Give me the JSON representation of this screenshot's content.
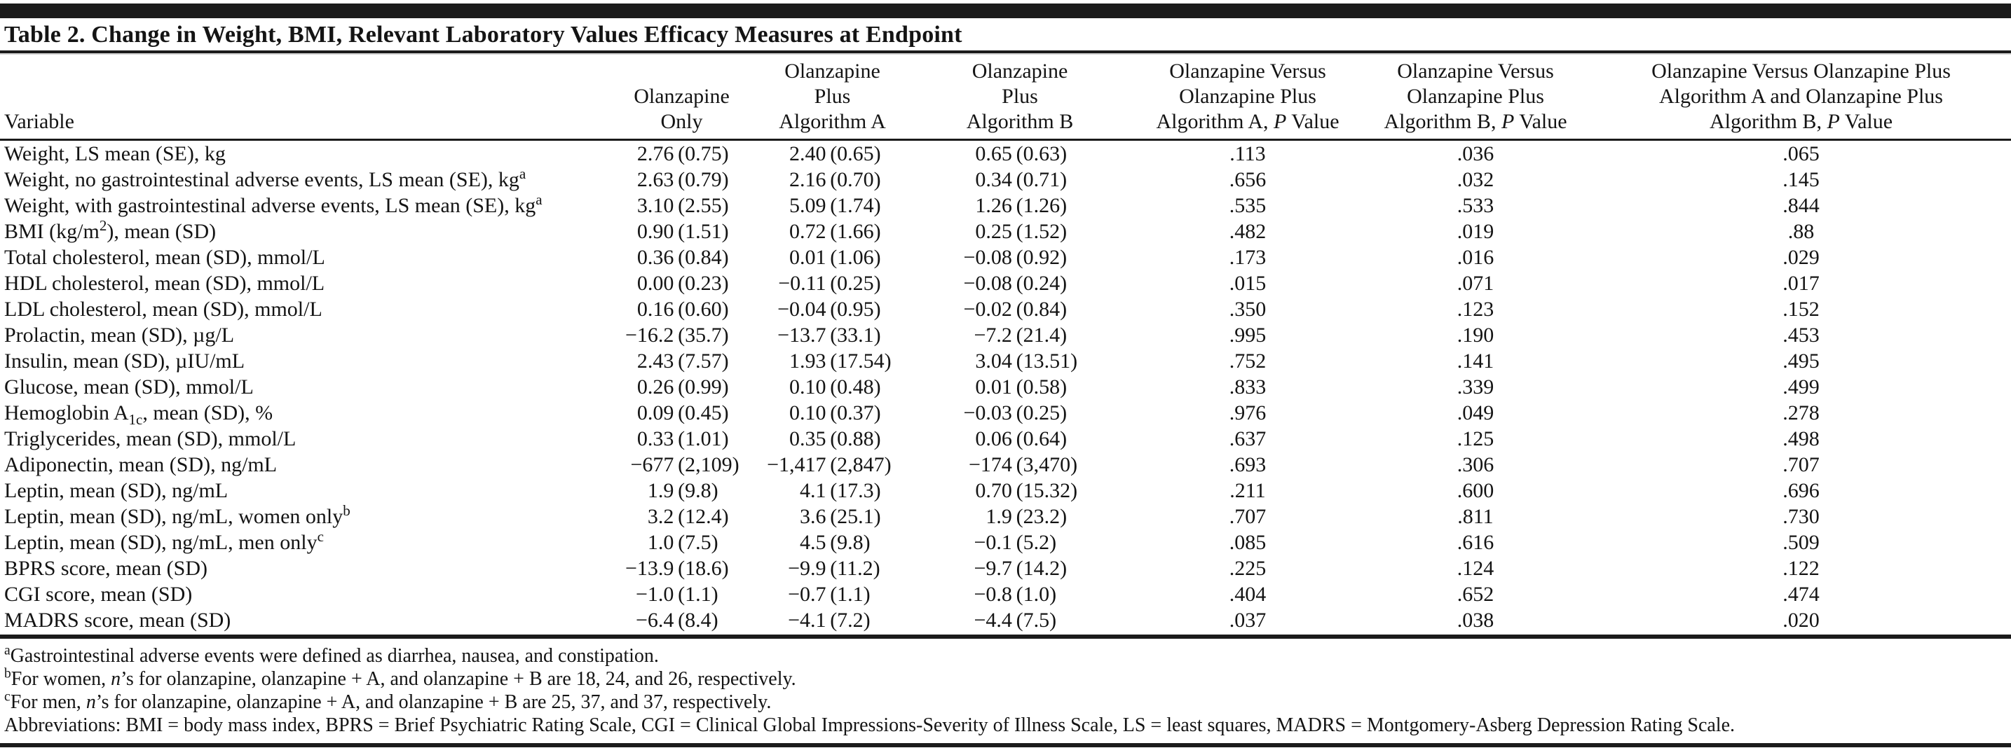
{
  "title": "Table 2. Change in Weight, BMI, Relevant Laboratory Values Efficacy Measures at Endpoint",
  "table": {
    "columns": [
      {
        "id": "variable",
        "label_lines": [
          "Variable"
        ]
      },
      {
        "id": "olz_only",
        "label_lines": [
          "Olanzapine",
          "Only"
        ]
      },
      {
        "id": "olz_a",
        "label_lines": [
          "Olanzapine",
          "Plus",
          "Algorithm A"
        ]
      },
      {
        "id": "olz_b",
        "label_lines": [
          "Olanzapine",
          "Plus",
          "Algorithm B"
        ]
      },
      {
        "id": "p_a",
        "label_lines": [
          "Olanzapine Versus",
          "Olanzapine Plus",
          "Algorithm A, *{P} Value"
        ]
      },
      {
        "id": "p_b",
        "label_lines": [
          "Olanzapine Versus",
          "Olanzapine Plus",
          "Algorithm B, *{P} Value"
        ]
      },
      {
        "id": "p_ab",
        "label_lines": [
          "Olanzapine Versus Olanzapine Plus",
          "Algorithm A and Olanzapine Plus",
          "Algorithm B, *{P} Value"
        ]
      }
    ],
    "rows": [
      {
        "variable": "Weight, LS mean (SE), kg",
        "olz_only": "2.76 (0.75)",
        "olz_a": "2.40 (0.65)",
        "olz_b": "0.65 (0.63)",
        "p_a": ".113",
        "p_b": ".036",
        "p_ab": ".065"
      },
      {
        "variable": "Weight, no gastrointestinal adverse events, LS mean (SE), kg^{a}",
        "olz_only": "2.63 (0.79)",
        "olz_a": "2.16 (0.70)",
        "olz_b": "0.34 (0.71)",
        "p_a": ".656",
        "p_b": ".032",
        "p_ab": ".145"
      },
      {
        "variable": "Weight, with gastrointestinal adverse events, LS mean (SE), kg^{a}",
        "olz_only": "3.10 (2.55)",
        "olz_a": "5.09 (1.74)",
        "olz_b": "1.26 (1.26)",
        "p_a": ".535",
        "p_b": ".533",
        "p_ab": ".844"
      },
      {
        "variable": "BMI (kg/m^{2}), mean (SD)",
        "olz_only": "0.90 (1.51)",
        "olz_a": "0.72 (1.66)",
        "olz_b": "0.25 (1.52)",
        "p_a": ".482",
        "p_b": ".019",
        "p_ab": ".88"
      },
      {
        "variable": "Total cholesterol, mean (SD), mmol/L",
        "olz_only": "0.36 (0.84)",
        "olz_a": "0.01 (1.06)",
        "olz_b": "−0.08 (0.92)",
        "p_a": ".173",
        "p_b": ".016",
        "p_ab": ".029"
      },
      {
        "variable": "HDL cholesterol, mean (SD), mmol/L",
        "olz_only": "0.00 (0.23)",
        "olz_a": "−0.11 (0.25)",
        "olz_b": "−0.08 (0.24)",
        "p_a": ".015",
        "p_b": ".071",
        "p_ab": ".017"
      },
      {
        "variable": "LDL cholesterol, mean (SD), mmol/L",
        "olz_only": "0.16 (0.60)",
        "olz_a": "−0.04 (0.95)",
        "olz_b": "−0.02 (0.84)",
        "p_a": ".350",
        "p_b": ".123",
        "p_ab": ".152"
      },
      {
        "variable": "Prolactin, mean (SD), µg/L",
        "olz_only": "−16.2 (35.7)",
        "olz_a": "−13.7 (33.1)",
        "olz_b": "−7.2 (21.4)",
        "p_a": ".995",
        "p_b": ".190",
        "p_ab": ".453"
      },
      {
        "variable": "Insulin, mean (SD), µIU/mL",
        "olz_only": "2.43 (7.57)",
        "olz_a": "1.93 (17.54)",
        "olz_b": "3.04 (13.51)",
        "p_a": ".752",
        "p_b": ".141",
        "p_ab": ".495"
      },
      {
        "variable": "Glucose, mean (SD), mmol/L",
        "olz_only": "0.26 (0.99)",
        "olz_a": "0.10 (0.48)",
        "olz_b": "0.01 (0.58)",
        "p_a": ".833",
        "p_b": ".339",
        "p_ab": ".499"
      },
      {
        "variable": "Hemoglobin A~{1c}, mean (SD), %",
        "olz_only": "0.09 (0.45)",
        "olz_a": "0.10 (0.37)",
        "olz_b": "−0.03 (0.25)",
        "p_a": ".976",
        "p_b": ".049",
        "p_ab": ".278"
      },
      {
        "variable": "Triglycerides, mean (SD), mmol/L",
        "olz_only": "0.33 (1.01)",
        "olz_a": "0.35 (0.88)",
        "olz_b": "0.06 (0.64)",
        "p_a": ".637",
        "p_b": ".125",
        "p_ab": ".498"
      },
      {
        "variable": "Adiponectin, mean (SD), ng/mL",
        "olz_only": "−677 (2,109)",
        "olz_a": "−1,417 (2,847)",
        "olz_b": "−174 (3,470)",
        "p_a": ".693",
        "p_b": ".306",
        "p_ab": ".707"
      },
      {
        "variable": "Leptin, mean (SD), ng/mL",
        "olz_only": "1.9 (9.8)",
        "olz_a": "4.1 (17.3)",
        "olz_b": "0.70 (15.32)",
        "p_a": ".211",
        "p_b": ".600",
        "p_ab": ".696"
      },
      {
        "variable": "Leptin, mean (SD), ng/mL, women only^{b}",
        "olz_only": "3.2 (12.4)",
        "olz_a": "3.6 (25.1)",
        "olz_b": "1.9 (23.2)",
        "p_a": ".707",
        "p_b": ".811",
        "p_ab": ".730"
      },
      {
        "variable": "Leptin, mean (SD), ng/mL, men only^{c}",
        "olz_only": "1.0 (7.5)",
        "olz_a": "4.5 (9.8)",
        "olz_b": "−0.1 (5.2)",
        "p_a": ".085",
        "p_b": ".616",
        "p_ab": ".509"
      },
      {
        "variable": "BPRS score, mean (SD)",
        "olz_only": "−13.9 (18.6)",
        "olz_a": "−9.9 (11.2)",
        "olz_b": "−9.7 (14.2)",
        "p_a": ".225",
        "p_b": ".124",
        "p_ab": ".122"
      },
      {
        "variable": "CGI score, mean (SD)",
        "olz_only": "−1.0 (1.1)",
        "olz_a": "−0.7 (1.1)",
        "olz_b": "−0.8 (1.0)",
        "p_a": ".404",
        "p_b": ".652",
        "p_ab": ".474"
      },
      {
        "variable": "MADRS score, mean (SD)",
        "olz_only": "−6.4 (8.4)",
        "olz_a": "−4.1 (7.2)",
        "olz_b": "−4.4 (7.5)",
        "p_a": ".037",
        "p_b": ".038",
        "p_ab": ".020"
      }
    ]
  },
  "footnotes": [
    "^{a}Gastrointestinal adverse events were defined as diarrhea, nausea, and constipation.",
    "^{b}For women, *{n}’s for olanzapine, olanzapine + A, and olanzapine + B are 18, 24, and 26, respectively.",
    "^{c}For men, *{n}’s for olanzapine, olanzapine + A, and olanzapine + B are 25, 37, and 37, respectively.",
    "Abbreviations: BMI = body mass index, BPRS = Brief Psychiatric Rating Scale, CGI = Clinical Global Impressions-Severity of Illness Scale, LS = least squares, MADRS = Montgomery-Asberg Depression Rating Scale."
  ]
}
